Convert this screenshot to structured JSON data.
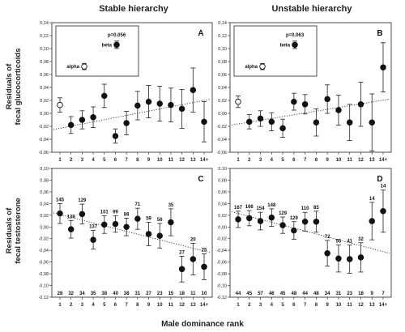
{
  "figure": {
    "col_titles": [
      "Stable hierarchy",
      "Unstable hierarchy"
    ],
    "row_ylabels": [
      [
        "Residuals of",
        "fecal glucocorticoids"
      ],
      [
        "Residuals of",
        "fecal testosterone"
      ]
    ],
    "xlabel": "Male dominance rank"
  },
  "chart_data": [
    {
      "type": "scatter",
      "panel_label": "A",
      "x_tick_labels": [
        "1",
        "2",
        "3",
        "4",
        "5",
        "6",
        "7",
        "8",
        "9",
        "10",
        "11",
        "12",
        "13",
        "14+"
      ],
      "y_ticks": [
        -0.06,
        -0.04,
        -0.02,
        0.0,
        0.02,
        0.04,
        0.06,
        0.08,
        0.1,
        0.12,
        0.14
      ],
      "ylim": [
        -0.06,
        0.14
      ],
      "y_tick_labels": [
        "-0,06",
        "-0,04",
        "-0,02",
        "0,00",
        "0,02",
        "0,04",
        "0,06",
        "0,08",
        "0,10",
        "0,12",
        "0,14"
      ],
      "x": [
        1,
        2,
        3,
        4,
        5,
        6,
        7,
        8,
        9,
        10,
        11,
        12,
        13,
        14
      ],
      "values": [
        0.013,
        -0.018,
        -0.01,
        -0.006,
        0.027,
        -0.035,
        -0.015,
        0.012,
        0.018,
        0.015,
        0.013,
        0.007,
        0.036,
        -0.013
      ],
      "err": [
        0.011,
        0.013,
        0.014,
        0.016,
        0.018,
        0.011,
        0.018,
        0.022,
        0.025,
        0.027,
        0.026,
        0.03,
        0.034,
        0.031
      ],
      "first_point_open": true,
      "trend": [
        -0.025,
        0.022
      ],
      "inset": {
        "p_text": "p=0.056",
        "alpha_label": "alpha",
        "beta_label": "beta",
        "alpha_value": 0.01,
        "beta_value": 0.08
      }
    },
    {
      "type": "scatter",
      "panel_label": "B",
      "x_tick_labels": [
        "1",
        "2",
        "3",
        "4",
        "5",
        "6",
        "7",
        "8",
        "9",
        "10",
        "11",
        "12",
        "13",
        "14+"
      ],
      "y_ticks": [
        -0.06,
        -0.04,
        -0.02,
        0.0,
        0.02,
        0.04,
        0.06,
        0.08,
        0.1,
        0.12,
        0.14
      ],
      "ylim": [
        -0.06,
        0.14
      ],
      "y_tick_labels": [
        "-0,06",
        "-0,04",
        "-0,02",
        "0,00",
        "0,02",
        "0,04",
        "0,06",
        "0,08",
        "0,10",
        "0,12",
        "0,14"
      ],
      "x": [
        1,
        2,
        3,
        4,
        5,
        6,
        7,
        8,
        9,
        10,
        11,
        12,
        13,
        14
      ],
      "values": [
        0.018,
        -0.013,
        -0.008,
        -0.013,
        -0.023,
        0.018,
        0.014,
        -0.014,
        0.022,
        0.005,
        -0.014,
        0.014,
        -0.014,
        0.071
      ],
      "err": [
        0.009,
        0.011,
        0.012,
        0.014,
        0.014,
        0.013,
        0.015,
        0.021,
        0.022,
        0.023,
        0.028,
        0.034,
        0.044,
        0.038
      ],
      "first_point_open": true,
      "trend": [
        -0.018,
        0.022
      ],
      "inset": {
        "p_text": "p=0.063",
        "alpha_label": "alpha",
        "beta_label": "beta",
        "alpha_value": 0.01,
        "beta_value": 0.08
      }
    },
    {
      "type": "scatter",
      "panel_label": "C",
      "x_tick_labels": [
        "1",
        "2",
        "3",
        "4",
        "5",
        "6",
        "7",
        "8",
        "9",
        "10",
        "11",
        "12",
        "13",
        "14+"
      ],
      "y_ticks": [
        -0.12,
        -0.1,
        -0.08,
        -0.06,
        -0.04,
        -0.02,
        0.0,
        0.02,
        0.04,
        0.06,
        0.08,
        0.1
      ],
      "ylim": [
        -0.12,
        0.1
      ],
      "y_tick_labels": [
        "-0,12",
        "-0,10",
        "-0,08",
        "-0,06",
        "-0,04",
        "-0,02",
        "0,00",
        "0,02",
        "0,04",
        "0,06",
        "0,08",
        "0,10"
      ],
      "x": [
        1,
        2,
        3,
        4,
        5,
        6,
        7,
        8,
        9,
        10,
        11,
        12,
        13,
        14
      ],
      "values": [
        0.023,
        -0.004,
        0.022,
        -0.022,
        0.004,
        0.005,
        0.0,
        0.014,
        -0.012,
        -0.015,
        0.008,
        -0.072,
        -0.055,
        -0.068
      ],
      "err": [
        0.017,
        0.015,
        0.017,
        0.016,
        0.015,
        0.014,
        0.015,
        0.018,
        0.02,
        0.021,
        0.023,
        0.022,
        0.027,
        0.022
      ],
      "first_point_open": false,
      "trend": [
        0.024,
        -0.044
      ],
      "top_n_labels": [
        "145",
        "139",
        "129",
        "137",
        "101",
        "99",
        "88",
        "71",
        "59",
        "56",
        "35",
        "27",
        "20",
        "25"
      ],
      "bottom_n_labels": [
        "28",
        "32",
        "34",
        "35",
        "38",
        "40",
        "38",
        "31",
        "27",
        "23",
        "15",
        "18",
        "11",
        "10"
      ]
    },
    {
      "type": "scatter",
      "panel_label": "D",
      "x_tick_labels": [
        "1",
        "2",
        "3",
        "4",
        "5",
        "6",
        "7",
        "8",
        "9",
        "10",
        "11",
        "12",
        "13",
        "14+"
      ],
      "y_ticks": [
        -0.12,
        -0.1,
        -0.08,
        -0.06,
        -0.04,
        -0.02,
        0.0,
        0.02,
        0.04,
        0.06,
        0.08,
        0.1
      ],
      "ylim": [
        -0.12,
        0.1
      ],
      "y_tick_labels": [
        "-0,12",
        "-0,10",
        "-0,08",
        "-0,06",
        "-0,04",
        "-0,02",
        "0,00",
        "0,02",
        "0,04",
        "0,06",
        "0,08",
        "0,10"
      ],
      "x": [
        1,
        2,
        3,
        4,
        5,
        6,
        7,
        8,
        9,
        10,
        11,
        12,
        13,
        14
      ],
      "values": [
        0.013,
        0.015,
        0.01,
        0.016,
        0.003,
        -0.006,
        0.009,
        0.009,
        -0.045,
        -0.054,
        -0.055,
        -0.052,
        0.01,
        0.027
      ],
      "err": [
        0.014,
        0.013,
        0.015,
        0.015,
        0.014,
        0.015,
        0.016,
        0.018,
        0.022,
        0.023,
        0.024,
        0.025,
        0.032,
        0.036
      ],
      "first_point_open": false,
      "trend": [
        0.026,
        -0.045
      ],
      "top_n_labels": [
        "167",
        "166",
        "154",
        "148",
        "129",
        "129",
        "110",
        "85",
        "72",
        "55",
        "41",
        "32",
        "14",
        "14"
      ],
      "bottom_n_labels": [
        "44",
        "45",
        "57",
        "46",
        "45",
        "48",
        "44",
        "48",
        "34",
        "31",
        "23",
        "18",
        "9",
        "7"
      ]
    }
  ]
}
